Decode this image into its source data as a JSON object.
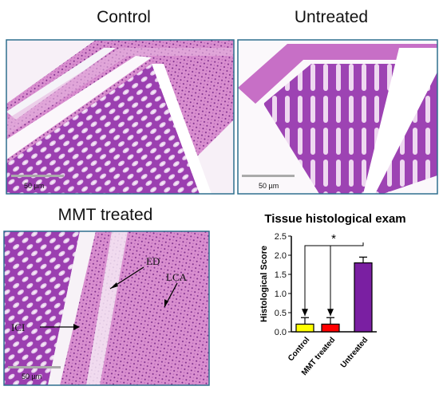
{
  "panels": [
    {
      "title": "Control",
      "scale_bar": "50 µm"
    },
    {
      "title": "Untreated",
      "scale_bar": "50 µm"
    },
    {
      "title": "MMT treated",
      "scale_bar": "50 µm",
      "annotations": [
        "ED",
        "LCA",
        "ICI"
      ]
    }
  ],
  "chart_data": {
    "type": "bar",
    "title": "Tissue histological exam",
    "y_label": "Histological Score",
    "categories": [
      "Control",
      "MMT treated",
      "Untreated"
    ],
    "values": [
      0.2,
      0.2,
      1.8
    ],
    "errors": [
      0.17,
      0.17,
      0.15
    ],
    "colors": [
      "#ffff00",
      "#ff0000",
      "#7a1fa2"
    ],
    "ylim": [
      0,
      2.5
    ],
    "yticks": [
      {
        "value": 0,
        "label": "0.0"
      },
      0.5,
      {
        "value": 1,
        "label": "1.0"
      },
      1.5,
      {
        "value": 2,
        "label": "2.0"
      },
      2.5
    ],
    "annotation": "*"
  }
}
